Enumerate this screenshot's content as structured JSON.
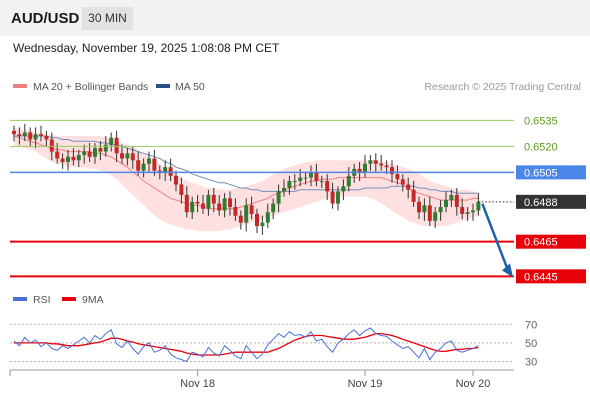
{
  "header": {
    "symbol": "AUD/USD",
    "timeframe": "30 MIN",
    "datetime": "Wednesday, November 19, 2025 1:08:08 PM CET"
  },
  "legend": {
    "ma20_label": "MA 20 + Bollinger Bands",
    "ma50_label": "MA 50",
    "rsi_label": "RSI",
    "rsi_ma_label": "9MA",
    "credit": "Research © 2025 Trading Central"
  },
  "colors": {
    "candle_up": "#2e7d32",
    "candle_down": "#c62828",
    "ma20": "#f08080",
    "bollinger_fill": "#ffd6d6",
    "ma50": "#7090b8",
    "resistance": "#9acd5a",
    "pivot": "#4a86e8",
    "support": "#e8000b",
    "current": "#333333",
    "arrow": "#1f5fa8",
    "rsi": "#4a6fd6",
    "rsi_ma": "#e8000b"
  },
  "chart_data": [
    {
      "type": "candlestick",
      "title": "AUD/USD",
      "ylim": [
        0.644,
        0.6541
      ],
      "x_ticks": [
        {
          "label": "Nov 18",
          "index": 34
        },
        {
          "label": "Nov 19",
          "index": 65
        },
        {
          "label": "Nov 20",
          "index": 85
        }
      ],
      "levels": [
        {
          "label": "0.6535",
          "value": 0.6535,
          "kind": "resistance"
        },
        {
          "label": "0.6520",
          "value": 0.652,
          "kind": "resistance"
        },
        {
          "label": "0.6505",
          "value": 0.6505,
          "kind": "pivot"
        },
        {
          "label": "0.6488",
          "value": 0.6488,
          "kind": "current"
        },
        {
          "label": "0.6465",
          "value": 0.6465,
          "kind": "support"
        },
        {
          "label": "0.6445",
          "value": 0.6445,
          "kind": "support"
        }
      ],
      "series": [
        {
          "name": "AUD/USD",
          "close": [
            0.6527,
            0.6526,
            0.6528,
            0.6524,
            0.6527,
            0.6526,
            0.6524,
            0.6517,
            0.6513,
            0.6511,
            0.6514,
            0.6512,
            0.6515,
            0.6517,
            0.6514,
            0.6519,
            0.6517,
            0.6521,
            0.6525,
            0.6516,
            0.6513,
            0.6516,
            0.6512,
            0.6506,
            0.651,
            0.6513,
            0.6506,
            0.6505,
            0.6508,
            0.6503,
            0.6498,
            0.6492,
            0.6482,
            0.6488,
            0.6487,
            0.6484,
            0.6492,
            0.6487,
            0.6483,
            0.649,
            0.6485,
            0.648,
            0.6476,
            0.6486,
            0.6481,
            0.6474,
            0.6476,
            0.6482,
            0.6487,
            0.6494,
            0.6496,
            0.65,
            0.65,
            0.6502,
            0.6502,
            0.6505,
            0.65,
            0.65,
            0.6494,
            0.6487,
            0.6494,
            0.6497,
            0.6503,
            0.6507,
            0.6505,
            0.651,
            0.6512,
            0.651,
            0.6509,
            0.6508,
            0.6504,
            0.6501,
            0.6498,
            0.6495,
            0.6488,
            0.6482,
            0.6486,
            0.6477,
            0.6482,
            0.6485,
            0.6489,
            0.6492,
            0.6485,
            0.6481,
            0.6482,
            0.6483,
            0.6488
          ],
          "ma20": [
            0.6526,
            0.6525,
            0.6524,
            0.6523,
            0.6522,
            0.6521,
            0.652,
            0.6519,
            0.6518,
            0.6518,
            0.6517,
            0.6517,
            0.6517,
            0.6517,
            0.6517,
            0.6516,
            0.6516,
            0.6515,
            0.6514,
            0.6512,
            0.651,
            0.6508,
            0.6505,
            0.6503,
            0.65,
            0.6498,
            0.6496,
            0.6494,
            0.6492,
            0.649,
            0.6489,
            0.6488,
            0.6487,
            0.6486,
            0.6486,
            0.6485,
            0.6484,
            0.6484,
            0.6484,
            0.6484,
            0.6484,
            0.6484,
            0.6485,
            0.6486,
            0.6487,
            0.6488,
            0.6489,
            0.649,
            0.6492,
            0.6493,
            0.6494,
            0.6496,
            0.6497,
            0.6498,
            0.6499,
            0.65,
            0.65,
            0.6501,
            0.6501,
            0.6501,
            0.6502,
            0.6502,
            0.6502,
            0.6502,
            0.6502,
            0.6502,
            0.6502,
            0.6502,
            0.6502,
            0.6501,
            0.65,
            0.6499,
            0.6498,
            0.6496,
            0.6494,
            0.6493,
            0.6492,
            0.6491,
            0.649,
            0.6489,
            0.6489,
            0.6489,
            0.6489,
            0.6489,
            0.6489,
            0.649,
            0.649
          ],
          "bb_upper": [
            0.6531,
            0.653,
            0.6529,
            0.6529,
            0.6528,
            0.6528,
            0.6527,
            0.6527,
            0.6526,
            0.6526,
            0.6526,
            0.6526,
            0.6526,
            0.6526,
            0.6526,
            0.6526,
            0.6526,
            0.6525,
            0.6524,
            0.6523,
            0.6522,
            0.6521,
            0.652,
            0.6518,
            0.6516,
            0.6514,
            0.6512,
            0.651,
            0.6508,
            0.6506,
            0.6504,
            0.6502,
            0.65,
            0.6499,
            0.6498,
            0.6497,
            0.6496,
            0.6496,
            0.6495,
            0.6495,
            0.6495,
            0.6496,
            0.6496,
            0.6497,
            0.6498,
            0.6499,
            0.65,
            0.6502,
            0.6504,
            0.6505,
            0.6507,
            0.6508,
            0.6509,
            0.651,
            0.6511,
            0.6511,
            0.6512,
            0.6512,
            0.6512,
            0.6512,
            0.6512,
            0.6512,
            0.6512,
            0.6512,
            0.6512,
            0.6512,
            0.6512,
            0.6512,
            0.6511,
            0.6511,
            0.651,
            0.6509,
            0.6508,
            0.6507,
            0.6506,
            0.6504,
            0.6502,
            0.65,
            0.6499,
            0.6498,
            0.6497,
            0.6496,
            0.6495,
            0.6495,
            0.6495,
            0.6494,
            0.6493
          ],
          "bb_lower": [
            0.6521,
            0.652,
            0.6519,
            0.6518,
            0.6517,
            0.6515,
            0.6513,
            0.6511,
            0.651,
            0.6509,
            0.6508,
            0.6508,
            0.6508,
            0.6508,
            0.6507,
            0.6507,
            0.6506,
            0.6505,
            0.6503,
            0.6501,
            0.6498,
            0.6495,
            0.6492,
            0.6489,
            0.6486,
            0.6483,
            0.648,
            0.6478,
            0.6476,
            0.6475,
            0.6474,
            0.6473,
            0.6472,
            0.6472,
            0.6471,
            0.6471,
            0.6471,
            0.6471,
            0.6471,
            0.6472,
            0.6472,
            0.6473,
            0.6474,
            0.6475,
            0.6476,
            0.6477,
            0.6478,
            0.6479,
            0.648,
            0.6481,
            0.6482,
            0.6483,
            0.6484,
            0.6485,
            0.6486,
            0.6487,
            0.6488,
            0.6489,
            0.649,
            0.649,
            0.6491,
            0.6491,
            0.6491,
            0.6491,
            0.6491,
            0.6491,
            0.649,
            0.6489,
            0.6487,
            0.6485,
            0.6483,
            0.6481,
            0.6479,
            0.6477,
            0.6476,
            0.6475,
            0.6474,
            0.6474,
            0.6474,
            0.6474,
            0.6474,
            0.6475,
            0.6476,
            0.6477,
            0.6478,
            0.6479,
            0.648
          ],
          "ma50": [
            0.6526,
            0.6526,
            0.6526,
            0.6526,
            0.6526,
            0.6526,
            0.6526,
            0.6525,
            0.6525,
            0.6524,
            0.6524,
            0.6523,
            0.6523,
            0.6523,
            0.6523,
            0.6523,
            0.6522,
            0.6522,
            0.6521,
            0.6521,
            0.652,
            0.6519,
            0.6518,
            0.6517,
            0.6516,
            0.6515,
            0.6514,
            0.6513,
            0.6511,
            0.651,
            0.6508,
            0.6507,
            0.6506,
            0.6504,
            0.6503,
            0.6502,
            0.6501,
            0.65,
            0.6499,
            0.6499,
            0.6498,
            0.6497,
            0.6496,
            0.6496,
            0.6495,
            0.6495,
            0.6494,
            0.6494,
            0.6494,
            0.6494,
            0.6494,
            0.6494,
            0.6494,
            0.6495,
            0.6495,
            0.6495,
            0.6495,
            0.6495,
            0.6495,
            0.6495,
            0.6495,
            0.6495,
            0.6495,
            0.6495,
            0.6495,
            0.6496,
            0.6496,
            0.6496,
            0.6496,
            0.6496,
            0.6497,
            0.6497,
            0.6497,
            0.6497,
            0.6497,
            0.6496,
            0.6496,
            0.6495,
            0.6495,
            0.6494,
            0.6494,
            0.6494,
            0.6493,
            0.6493,
            0.6493,
            0.6493,
            0.6493
          ]
        }
      ],
      "projection": {
        "from_value": 0.6488,
        "to_value": 0.6445
      }
    },
    {
      "type": "line",
      "title": "RSI",
      "ylim": [
        23,
        80
      ],
      "y_ticks": [
        70,
        50,
        30
      ],
      "series": [
        {
          "name": "RSI",
          "values": [
            52,
            47,
            56,
            50,
            53,
            46,
            50,
            44,
            42,
            47,
            44,
            48,
            52,
            56,
            50,
            58,
            54,
            60,
            64,
            49,
            45,
            52,
            44,
            38,
            46,
            50,
            40,
            42,
            47,
            38,
            34,
            32,
            30,
            40,
            38,
            35,
            45,
            39,
            36,
            47,
            42,
            36,
            33,
            47,
            40,
            33,
            38,
            48,
            54,
            60,
            56,
            62,
            58,
            59,
            56,
            62,
            52,
            54,
            46,
            40,
            50,
            54,
            60,
            64,
            58,
            63,
            66,
            60,
            58,
            57,
            52,
            48,
            44,
            46,
            40,
            34,
            44,
            32,
            40,
            44,
            50,
            52,
            42,
            40,
            42,
            44,
            47
          ]
        },
        {
          "name": "9MA",
          "values": [
            50,
            50,
            50,
            50,
            50,
            50,
            50,
            49,
            49,
            48,
            47,
            47,
            47,
            48,
            49,
            50,
            51,
            53,
            55,
            55,
            54,
            52,
            51,
            49,
            48,
            47,
            46,
            45,
            44,
            43,
            42,
            41,
            39,
            38,
            37,
            37,
            37,
            37,
            37,
            38,
            39,
            40,
            40,
            40,
            40,
            40,
            40,
            40,
            42,
            44,
            47,
            50,
            53,
            55,
            57,
            58,
            58,
            58,
            57,
            56,
            55,
            54,
            54,
            54,
            55,
            56,
            58,
            60,
            60,
            59,
            58,
            56,
            54,
            52,
            50,
            48,
            46,
            44,
            42,
            41,
            41,
            42,
            43,
            43,
            44,
            44,
            45
          ]
        }
      ]
    }
  ]
}
